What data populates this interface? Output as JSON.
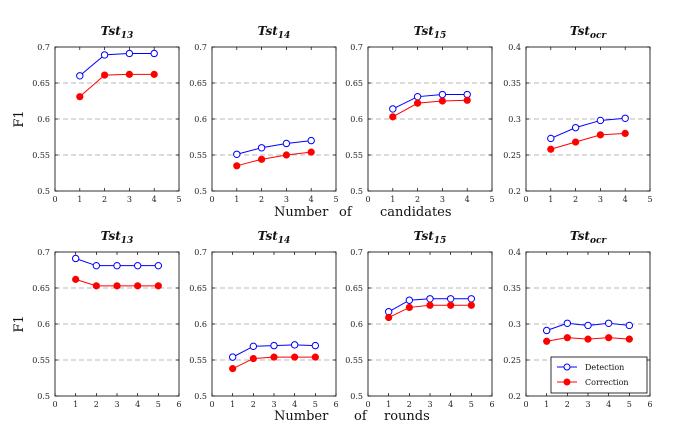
{
  "chart_data": [
    {
      "type": "line",
      "row": 1,
      "title": "Tst",
      "title_sub": "13",
      "x": [
        1,
        2,
        3,
        4
      ],
      "xlim": [
        0,
        5
      ],
      "ylim": [
        0.5,
        0.7
      ],
      "yticks": [
        "0.5",
        "0.55",
        "0.6",
        "0.65",
        "0.7"
      ],
      "xticks": [
        "0",
        "1",
        "2",
        "3",
        "4",
        "5"
      ],
      "ylabel": "F1",
      "grid": "horizontal dashed",
      "series": [
        {
          "name": "Detection",
          "color": "#0000ff",
          "marker": "open-circle",
          "values": [
            0.66,
            0.689,
            0.691,
            0.691
          ]
        },
        {
          "name": "Correction",
          "color": "#ff0000",
          "marker": "filled-circle",
          "values": [
            0.631,
            0.661,
            0.662,
            0.662
          ]
        }
      ]
    },
    {
      "type": "line",
      "row": 1,
      "title": "Tst",
      "title_sub": "14",
      "x": [
        1,
        2,
        3,
        4
      ],
      "xlim": [
        0,
        5
      ],
      "ylim": [
        0.5,
        0.7
      ],
      "yticks": [
        "0.5",
        "0.55",
        "0.6",
        "0.65",
        "0.7"
      ],
      "xticks": [
        "0",
        "1",
        "2",
        "3",
        "4",
        "5"
      ],
      "grid": "horizontal dashed",
      "series": [
        {
          "name": "Detection",
          "color": "#0000ff",
          "marker": "open-circle",
          "values": [
            0.551,
            0.56,
            0.566,
            0.57
          ]
        },
        {
          "name": "Correction",
          "color": "#ff0000",
          "marker": "filled-circle",
          "values": [
            0.535,
            0.544,
            0.55,
            0.554
          ]
        }
      ]
    },
    {
      "type": "line",
      "row": 1,
      "title": "Tst",
      "title_sub": "15",
      "x": [
        1,
        2,
        3,
        4
      ],
      "xlim": [
        0,
        5
      ],
      "ylim": [
        0.5,
        0.7
      ],
      "yticks": [
        "0.5",
        "0.55",
        "0.6",
        "0.65",
        "0.7"
      ],
      "xticks": [
        "0",
        "1",
        "2",
        "3",
        "4",
        "5"
      ],
      "grid": "horizontal dashed",
      "series": [
        {
          "name": "Detection",
          "color": "#0000ff",
          "marker": "open-circle",
          "values": [
            0.614,
            0.631,
            0.634,
            0.634
          ]
        },
        {
          "name": "Correction",
          "color": "#ff0000",
          "marker": "filled-circle",
          "values": [
            0.603,
            0.622,
            0.625,
            0.626
          ]
        }
      ]
    },
    {
      "type": "line",
      "row": 1,
      "title": "Tst",
      "title_sub": "ocr",
      "x": [
        1,
        2,
        3,
        4
      ],
      "xlim": [
        0,
        5
      ],
      "ylim": [
        0.2,
        0.4
      ],
      "yticks": [
        "0.2",
        "0.25",
        "0.3",
        "0.35",
        "0.4"
      ],
      "xticks": [
        "0",
        "1",
        "2",
        "3",
        "4",
        "5"
      ],
      "grid": "horizontal dashed",
      "series": [
        {
          "name": "Detection",
          "color": "#0000ff",
          "marker": "open-circle",
          "values": [
            0.273,
            0.288,
            0.298,
            0.301
          ]
        },
        {
          "name": "Correction",
          "color": "#ff0000",
          "marker": "filled-circle",
          "values": [
            0.258,
            0.268,
            0.278,
            0.28
          ]
        }
      ]
    },
    {
      "type": "line",
      "row": 2,
      "title": "Tst",
      "title_sub": "13",
      "x": [
        1,
        2,
        3,
        4,
        5
      ],
      "xlim": [
        0,
        6
      ],
      "ylim": [
        0.5,
        0.7
      ],
      "yticks": [
        "0.5",
        "0.55",
        "0.6",
        "0.65",
        "0.7"
      ],
      "xticks": [
        "0",
        "1",
        "2",
        "3",
        "4",
        "5",
        "6"
      ],
      "ylabel": "F1",
      "grid": "horizontal dashed",
      "series": [
        {
          "name": "Detection",
          "color": "#0000ff",
          "marker": "open-circle",
          "values": [
            0.691,
            0.681,
            0.681,
            0.681,
            0.681
          ]
        },
        {
          "name": "Correction",
          "color": "#ff0000",
          "marker": "filled-circle",
          "values": [
            0.662,
            0.653,
            0.653,
            0.653,
            0.653
          ]
        }
      ]
    },
    {
      "type": "line",
      "row": 2,
      "title": "Tst",
      "title_sub": "14",
      "x": [
        1,
        2,
        3,
        4,
        5
      ],
      "xlim": [
        0,
        6
      ],
      "ylim": [
        0.5,
        0.7
      ],
      "yticks": [
        "0.5",
        "0.55",
        "0.6",
        "0.65",
        "0.7"
      ],
      "xticks": [
        "0",
        "1",
        "2",
        "3",
        "4",
        "5",
        "6"
      ],
      "grid": "horizontal dashed",
      "series": [
        {
          "name": "Detection",
          "color": "#0000ff",
          "marker": "open-circle",
          "values": [
            0.554,
            0.569,
            0.57,
            0.571,
            0.57
          ]
        },
        {
          "name": "Correction",
          "color": "#ff0000",
          "marker": "filled-circle",
          "values": [
            0.538,
            0.552,
            0.554,
            0.554,
            0.554
          ]
        }
      ]
    },
    {
      "type": "line",
      "row": 2,
      "title": "Tst",
      "title_sub": "15",
      "x": [
        1,
        2,
        3,
        4,
        5
      ],
      "xlim": [
        0,
        6
      ],
      "ylim": [
        0.5,
        0.7
      ],
      "yticks": [
        "0.5",
        "0.55",
        "0.6",
        "0.65",
        "0.7"
      ],
      "xticks": [
        "0",
        "1",
        "2",
        "3",
        "4",
        "5",
        "6"
      ],
      "grid": "horizontal dashed",
      "series": [
        {
          "name": "Detection",
          "color": "#0000ff",
          "marker": "open-circle",
          "values": [
            0.617,
            0.633,
            0.635,
            0.635,
            0.635
          ]
        },
        {
          "name": "Correction",
          "color": "#ff0000",
          "marker": "filled-circle",
          "values": [
            0.609,
            0.623,
            0.626,
            0.626,
            0.626
          ]
        }
      ]
    },
    {
      "type": "line",
      "row": 2,
      "title": "Tst",
      "title_sub": "ocr",
      "x": [
        1,
        2,
        3,
        4,
        5
      ],
      "xlim": [
        0,
        6
      ],
      "ylim": [
        0.2,
        0.4
      ],
      "yticks": [
        "0.2",
        "0.25",
        "0.3",
        "0.35",
        "0.4"
      ],
      "xticks": [
        "0",
        "1",
        "2",
        "3",
        "4",
        "5",
        "6"
      ],
      "grid": "horizontal dashed",
      "legend": "bottom-right",
      "series": [
        {
          "name": "Detection",
          "color": "#0000ff",
          "marker": "open-circle",
          "values": [
            0.291,
            0.301,
            0.298,
            0.301,
            0.298
          ]
        },
        {
          "name": "Correction",
          "color": "#ff0000",
          "marker": "filled-circle",
          "values": [
            0.276,
            0.281,
            0.279,
            0.281,
            0.279
          ]
        }
      ]
    }
  ],
  "row_xlabels": [
    {
      "words": [
        "Number",
        "of",
        "candidates"
      ]
    },
    {
      "words": [
        "Number",
        "of",
        "rounds"
      ]
    }
  ],
  "legend": {
    "items": [
      "Detection",
      "Correction"
    ]
  }
}
